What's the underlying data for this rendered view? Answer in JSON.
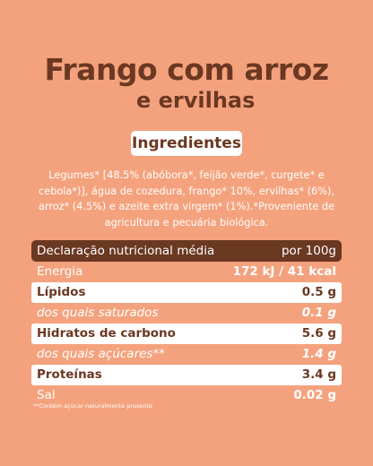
{
  "header": {
    "title": "Frango com arroz",
    "subtitle": "e ervilhas"
  },
  "ingredients": {
    "heading": "Ingredientes",
    "text": "Legumes* [48.5% (abóbora*, feijão verde*, curgete* e cebola*)], água de cozedura, frango* 10%, ervilhas* (6%), arroz* (4.5%) e azeite extra virgem* (1%).*Proveniente de agricultura e pecuária biológica."
  },
  "table": {
    "header": [
      "Declaração nutricional média",
      "por 100g"
    ],
    "rows": [
      [
        "Energia",
        "172 kJ / 41 kcal"
      ],
      [
        "Lípidos",
        "0.5 g"
      ],
      [
        "dos quais saturados",
        "0.1 g"
      ],
      [
        "Hidratos de carbono",
        "5.6 g"
      ],
      [
        "dos quais açúcares**",
        "1.4 g"
      ],
      [
        "Proteínas",
        "3.4 g"
      ],
      [
        "Sal",
        "0.02 g"
      ]
    ]
  },
  "footnote": "**Contém açúcar naturalmente presente"
}
